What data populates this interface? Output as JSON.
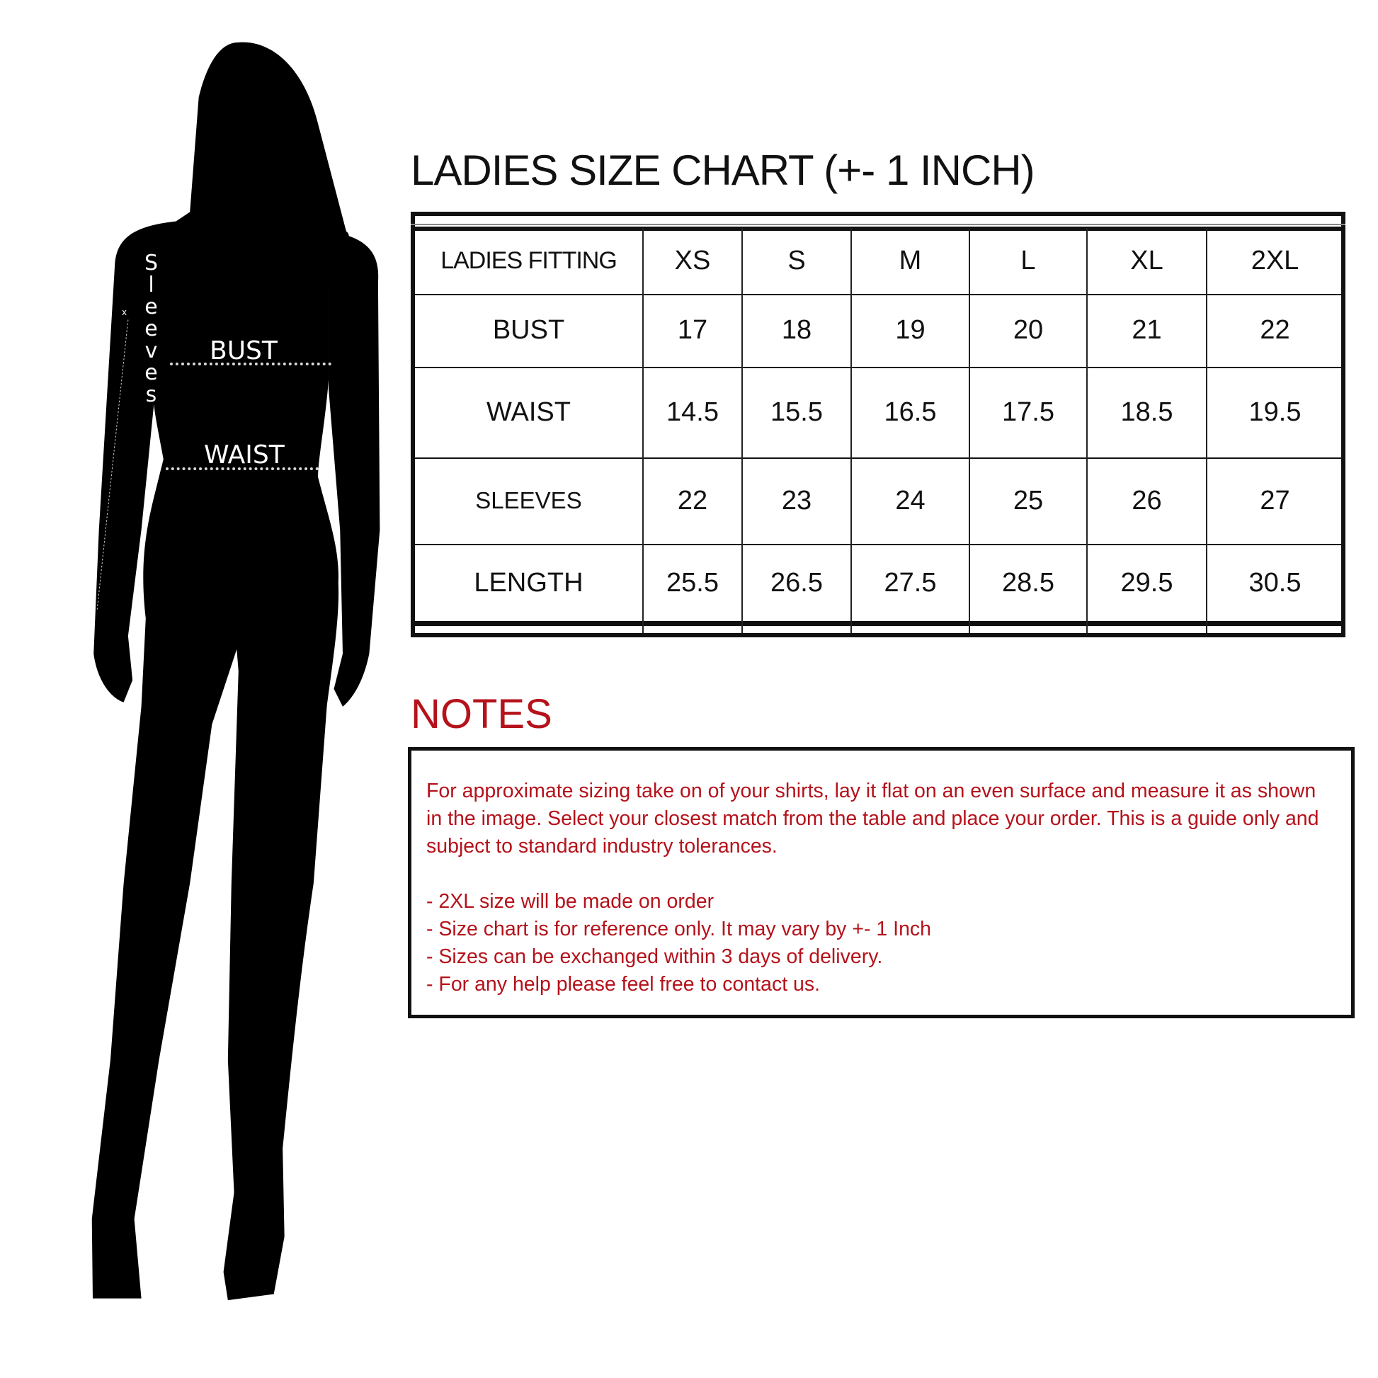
{
  "figure": {
    "labels": {
      "bust": "BUST",
      "waist": "WAIST",
      "sleeves": "Sleeves",
      "marker": "x"
    }
  },
  "title": "LADIES SIZE CHART (+- 1 INCH)",
  "table": {
    "headers": [
      "LADIES FITTING",
      "XS",
      "S",
      "M",
      "L",
      "XL",
      "2XL"
    ],
    "rows": [
      [
        "BUST",
        "17",
        "18",
        "19",
        "20",
        "21",
        "22"
      ],
      [
        "WAIST",
        "14.5",
        "15.5",
        "16.5",
        "17.5",
        "18.5",
        "19.5"
      ],
      [
        "SLEEVES",
        "22",
        "23",
        "24",
        "25",
        "26",
        "27"
      ],
      [
        "LENGTH",
        "25.5",
        "26.5",
        "27.5",
        "28.5",
        "29.5",
        "30.5"
      ]
    ]
  },
  "notes": {
    "title": "NOTES",
    "paragraph": "For approximate sizing take on of your shirts, lay it flat on an even surface and measure it as shown in the image. Select your closest match from the table and place your order. This is a guide only and subject to standard industry tolerances.",
    "items": [
      "- 2XL size will be made on order",
      "- Size chart is for reference only. It may vary by +- 1 Inch",
      "- Sizes can be exchanged within 3 days of delivery.",
      "- For any help please feel free to contact us."
    ]
  },
  "colors": {
    "notes_red": "#b5121b",
    "silhouette": "#000000"
  }
}
